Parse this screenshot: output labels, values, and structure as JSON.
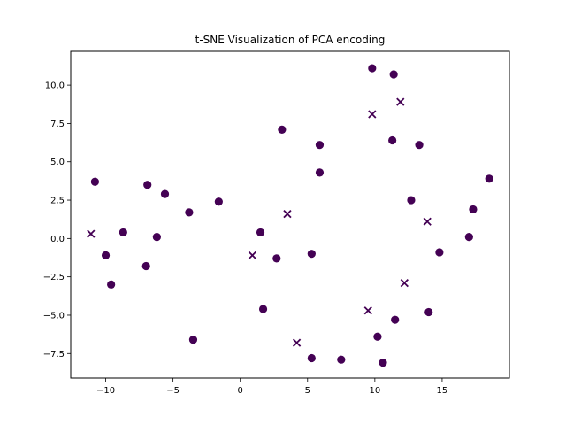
{
  "chart_data": {
    "type": "scatter",
    "title": "t-SNE Visualization of PCA encoding",
    "xlabel": "",
    "ylabel": "",
    "xlim": [
      -12.6,
      20.0
    ],
    "ylim": [
      -9.1,
      12.2
    ],
    "xticks": [
      -10,
      -5,
      0,
      5,
      10,
      15
    ],
    "xtick_labels": [
      "−10",
      "−5",
      "0",
      "5",
      "10",
      "15"
    ],
    "yticks": [
      -7.5,
      -5.0,
      -2.5,
      0.0,
      2.5,
      5.0,
      7.5,
      10.0
    ],
    "ytick_labels": [
      "−7.5",
      "−5.0",
      "−2.5",
      "0.0",
      "2.5",
      "5.0",
      "7.5",
      "10.0"
    ],
    "grid": false,
    "color": "#440154",
    "series": [
      {
        "marker": "circle",
        "points": [
          [
            -10.8,
            3.7
          ],
          [
            -10.0,
            -1.1
          ],
          [
            -9.6,
            -3.0
          ],
          [
            -8.7,
            0.4
          ],
          [
            -6.9,
            3.5
          ],
          [
            -7.0,
            -1.8
          ],
          [
            -6.2,
            0.1
          ],
          [
            -5.6,
            2.9
          ],
          [
            -3.8,
            1.7
          ],
          [
            -3.5,
            -6.6
          ],
          [
            -1.6,
            2.4
          ],
          [
            1.5,
            0.4
          ],
          [
            1.7,
            -4.6
          ],
          [
            2.7,
            -1.3
          ],
          [
            3.1,
            7.1
          ],
          [
            5.3,
            -1.0
          ],
          [
            5.9,
            6.1
          ],
          [
            5.9,
            4.3
          ],
          [
            5.3,
            -7.8
          ],
          [
            7.5,
            -7.9
          ],
          [
            9.8,
            11.1
          ],
          [
            10.2,
            -6.4
          ],
          [
            10.6,
            -8.1
          ],
          [
            11.4,
            10.7
          ],
          [
            11.3,
            6.4
          ],
          [
            11.5,
            -5.3
          ],
          [
            12.7,
            2.5
          ],
          [
            13.3,
            6.1
          ],
          [
            14.0,
            -4.8
          ],
          [
            14.8,
            -0.9
          ],
          [
            17.0,
            0.1
          ],
          [
            17.3,
            1.9
          ],
          [
            18.5,
            3.9
          ]
        ]
      },
      {
        "marker": "x",
        "points": [
          [
            -11.1,
            0.3
          ],
          [
            0.9,
            -1.1
          ],
          [
            3.5,
            1.6
          ],
          [
            4.2,
            -6.8
          ],
          [
            9.5,
            -4.7
          ],
          [
            9.8,
            8.1
          ],
          [
            11.9,
            8.9
          ],
          [
            12.2,
            -2.9
          ],
          [
            13.9,
            1.1
          ]
        ]
      }
    ]
  }
}
